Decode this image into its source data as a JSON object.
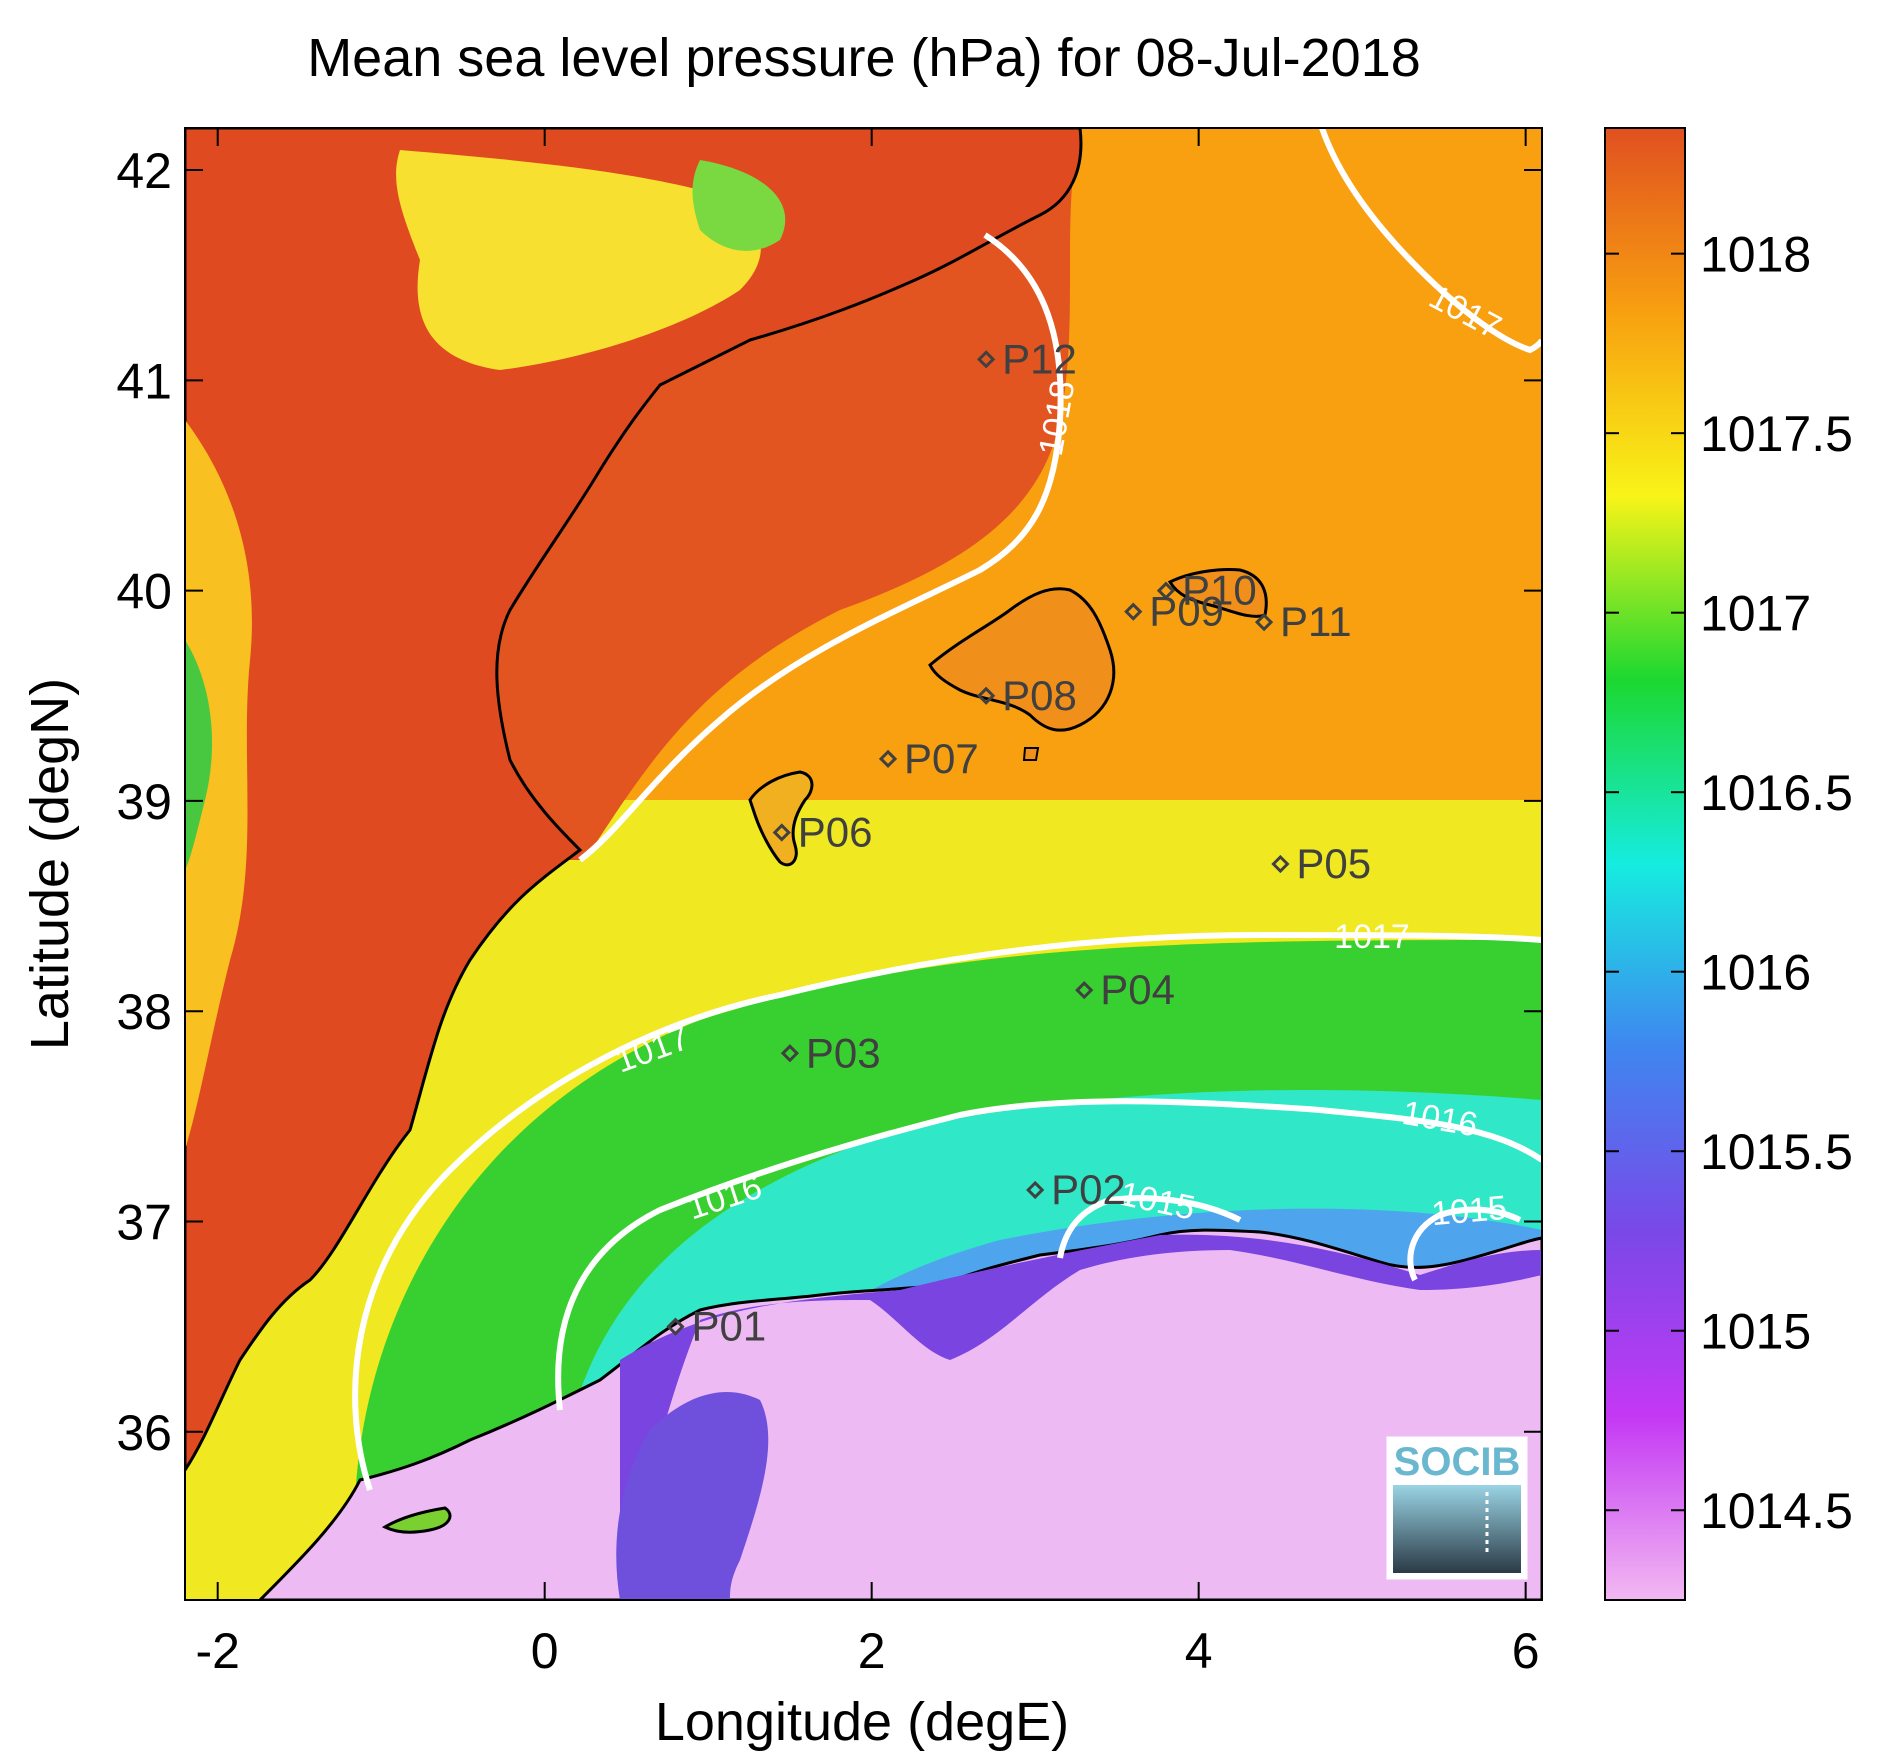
{
  "title": "Mean sea level pressure (hPa) for 08-Jul-2018",
  "chart_data": {
    "type": "heatmap",
    "xlabel": "Longitude (degE)",
    "ylabel": "Latitude (degN)",
    "xlim": [
      -2.2,
      6.1
    ],
    "ylim": [
      35.2,
      42.2
    ],
    "xticks": [
      "-2",
      "0",
      "2",
      "4",
      "6"
    ],
    "yticks": [
      "36",
      "37",
      "38",
      "39",
      "40",
      "41",
      "42"
    ],
    "colorbar": {
      "range": [
        1014.25,
        1018.35
      ],
      "ticks": [
        "1014.5",
        "1015",
        "1015.5",
        "1016",
        "1016.5",
        "1017",
        "1017.5",
        "1018"
      ],
      "colormap": [
        "#f2b8f2",
        "#c438f4",
        "#7a48e8",
        "#3f86f0",
        "#16ece0",
        "#1cd830",
        "#f8f418",
        "#f8a010",
        "#e05020"
      ]
    },
    "contour_labels": [
      "1018",
      "1017",
      "1017",
      "1017",
      "1016",
      "1016",
      "1015",
      "1015"
    ],
    "stations": [
      {
        "name": "P01",
        "lon": 0.8,
        "lat": 36.5
      },
      {
        "name": "P02",
        "lon": 3.0,
        "lat": 37.15
      },
      {
        "name": "P03",
        "lon": 1.5,
        "lat": 37.8
      },
      {
        "name": "P04",
        "lon": 3.3,
        "lat": 38.1
      },
      {
        "name": "P05",
        "lon": 4.5,
        "lat": 38.7
      },
      {
        "name": "P06",
        "lon": 1.45,
        "lat": 38.85
      },
      {
        "name": "P07",
        "lon": 2.1,
        "lat": 39.2
      },
      {
        "name": "P08",
        "lon": 2.7,
        "lat": 39.5
      },
      {
        "name": "P09",
        "lon": 3.6,
        "lat": 39.9
      },
      {
        "name": "P10",
        "lon": 3.8,
        "lat": 40.0
      },
      {
        "name": "P11",
        "lon": 4.4,
        "lat": 39.85
      },
      {
        "name": "P12",
        "lon": 2.7,
        "lat": 41.1
      }
    ]
  },
  "logo": {
    "text": "SOCIB",
    "icon": "socib-logo-icon"
  }
}
